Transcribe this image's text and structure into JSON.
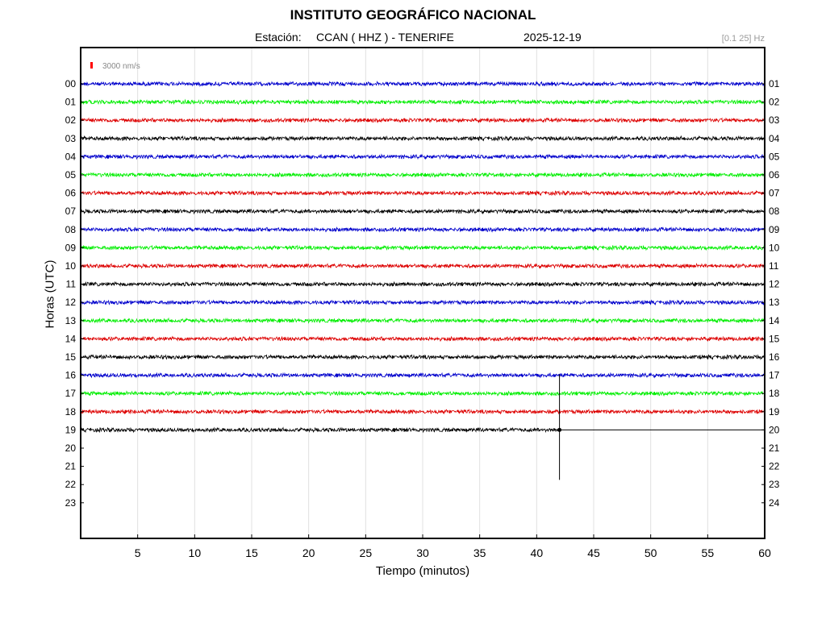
{
  "title": "INSTITUTO GEOGRÁFICO NACIONAL",
  "station_label": "Estación:",
  "station": "CCAN ( HHZ ) - TENERIFE",
  "date": "2025-12-19",
  "band": "[0.1 25] Hz",
  "scale_label": "3000 nm/s",
  "colors": {
    "scale_mark": "#ff0000",
    "grid": "#e0e0e0",
    "frame": "#000000"
  },
  "chart_data": {
    "type": "line",
    "title": "INSTITUTO GEOGRÁFICO NACIONAL",
    "xlabel": "Tiempo (minutos)",
    "ylabel": "Horas (UTC)",
    "xlim": [
      0,
      60
    ],
    "x_ticks": [
      5,
      10,
      15,
      20,
      25,
      30,
      35,
      40,
      45,
      50,
      55,
      60
    ],
    "left_ticks": [
      "00",
      "01",
      "02",
      "03",
      "04",
      "05",
      "06",
      "07",
      "08",
      "09",
      "10",
      "11",
      "12",
      "13",
      "14",
      "15",
      "16",
      "17",
      "18",
      "19",
      "20",
      "21",
      "22",
      "23"
    ],
    "right_ticks": [
      "01",
      "02",
      "03",
      "04",
      "05",
      "06",
      "07",
      "08",
      "09",
      "10",
      "11",
      "12",
      "13",
      "14",
      "15",
      "16",
      "17",
      "18",
      "19",
      "20",
      "21",
      "22",
      "23",
      "24"
    ],
    "grid": "vertical",
    "trace_colors": [
      "#0000cc",
      "#00ee00",
      "#dd0000",
      "#000000"
    ],
    "series": [
      {
        "hour": "00",
        "color": "#0000cc",
        "end_minute": 60
      },
      {
        "hour": "01",
        "color": "#00ee00",
        "end_minute": 60
      },
      {
        "hour": "02",
        "color": "#dd0000",
        "end_minute": 60
      },
      {
        "hour": "03",
        "color": "#000000",
        "end_minute": 60
      },
      {
        "hour": "04",
        "color": "#0000cc",
        "end_minute": 60
      },
      {
        "hour": "05",
        "color": "#00ee00",
        "end_minute": 60
      },
      {
        "hour": "06",
        "color": "#dd0000",
        "end_minute": 60
      },
      {
        "hour": "07",
        "color": "#000000",
        "end_minute": 60
      },
      {
        "hour": "08",
        "color": "#0000cc",
        "end_minute": 60
      },
      {
        "hour": "09",
        "color": "#00ee00",
        "end_minute": 60
      },
      {
        "hour": "10",
        "color": "#dd0000",
        "end_minute": 60
      },
      {
        "hour": "11",
        "color": "#000000",
        "end_minute": 60
      },
      {
        "hour": "12",
        "color": "#0000cc",
        "end_minute": 60
      },
      {
        "hour": "13",
        "color": "#00ee00",
        "end_minute": 60
      },
      {
        "hour": "14",
        "color": "#dd0000",
        "end_minute": 60
      },
      {
        "hour": "15",
        "color": "#000000",
        "end_minute": 60
      },
      {
        "hour": "16",
        "color": "#0000cc",
        "end_minute": 60
      },
      {
        "hour": "17",
        "color": "#00ee00",
        "end_minute": 60
      },
      {
        "hour": "18",
        "color": "#dd0000",
        "end_minute": 60
      },
      {
        "hour": "19",
        "color": "#000000",
        "end_minute": 42
      }
    ],
    "current_time_marker": {
      "hour": "19",
      "minute": 42
    }
  }
}
